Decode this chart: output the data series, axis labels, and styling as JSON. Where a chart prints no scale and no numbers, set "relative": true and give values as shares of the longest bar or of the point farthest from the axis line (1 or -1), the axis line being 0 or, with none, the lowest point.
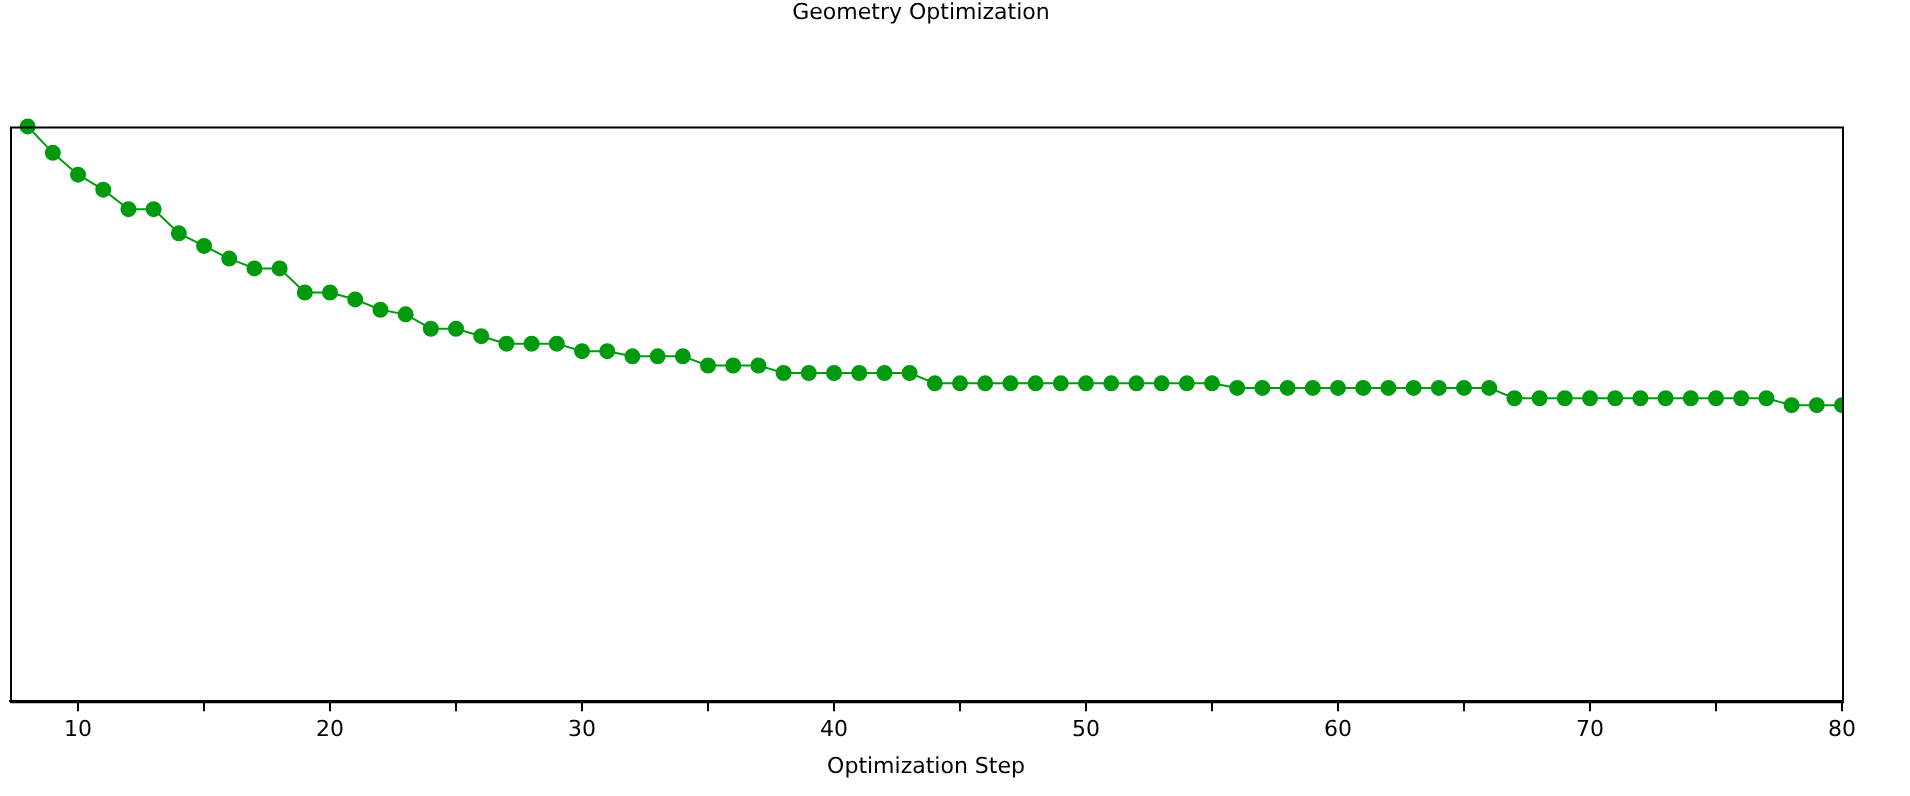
{
  "chart_data": {
    "type": "line",
    "title": "Geometry Optimization",
    "xlabel": "Optimization Step",
    "relative": true,
    "grid": false,
    "legend": false,
    "marker": "circle",
    "line_style": "solid",
    "xlim": [
      7.3,
      80
    ],
    "xticks": [
      10,
      {
        "value": 15,
        "label": null
      },
      20,
      {
        "value": 25,
        "label": null
      },
      30,
      {
        "value": 35,
        "label": null
      },
      40,
      {
        "value": 45,
        "label": null
      },
      50,
      {
        "value": 55,
        "label": null
      },
      60,
      {
        "value": 65,
        "label": null
      },
      70,
      {
        "value": 75,
        "label": null
      },
      80
    ],
    "series": [
      {
        "color": "#009a0f",
        "x": [
          8,
          9,
          10,
          11,
          12,
          13,
          14,
          15,
          16,
          17,
          18,
          19,
          20,
          21,
          22,
          23,
          24,
          25,
          26,
          27,
          28,
          29,
          30,
          31,
          32,
          33,
          34,
          35,
          36,
          37,
          38,
          39,
          40,
          41,
          42,
          43,
          44,
          45,
          46,
          47,
          48,
          49,
          50,
          51,
          52,
          53,
          54,
          55,
          56,
          57,
          58,
          59,
          60,
          61,
          62,
          63,
          64,
          65,
          66,
          67,
          68,
          69,
          70,
          71,
          72,
          73,
          74,
          75,
          76,
          77,
          78,
          79,
          80
        ],
        "values": [
          1.0,
          0.954,
          0.916,
          0.89,
          0.856,
          0.856,
          0.814,
          0.792,
          0.77,
          0.753,
          0.753,
          0.711,
          0.711,
          0.699,
          0.681,
          0.673,
          0.648,
          0.648,
          0.635,
          0.622,
          0.622,
          0.622,
          0.609,
          0.609,
          0.6,
          0.6,
          0.6,
          0.584,
          0.584,
          0.584,
          0.571,
          0.571,
          0.571,
          0.571,
          0.571,
          0.571,
          0.553,
          0.553,
          0.553,
          0.553,
          0.553,
          0.553,
          0.553,
          0.553,
          0.553,
          0.553,
          0.553,
          0.553,
          0.545,
          0.545,
          0.545,
          0.545,
          0.545,
          0.545,
          0.545,
          0.545,
          0.545,
          0.545,
          0.545,
          0.527,
          0.527,
          0.527,
          0.527,
          0.527,
          0.527,
          0.527,
          0.527,
          0.527,
          0.527,
          0.527,
          0.515,
          0.515,
          0.515
        ]
      }
    ]
  }
}
